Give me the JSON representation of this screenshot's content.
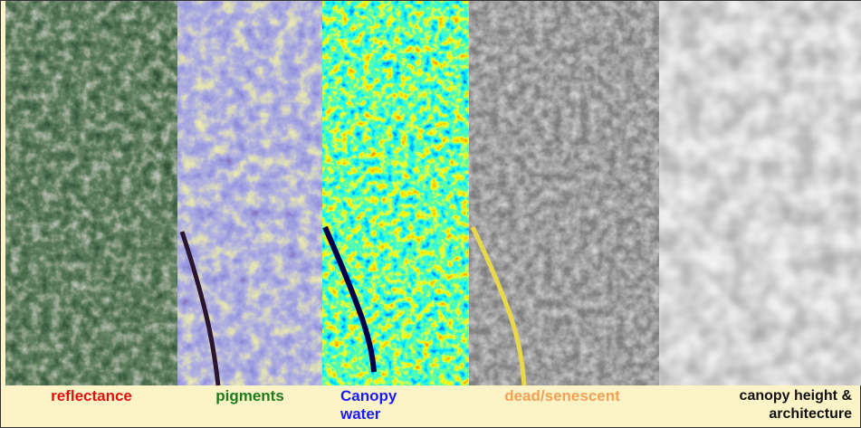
{
  "panels": [
    {
      "label": "reflectance"
    },
    {
      "label": "pigments"
    },
    {
      "label": "Canopy water"
    },
    {
      "label": "dead/senescent"
    },
    {
      "label": "canopy height & architecture"
    }
  ]
}
